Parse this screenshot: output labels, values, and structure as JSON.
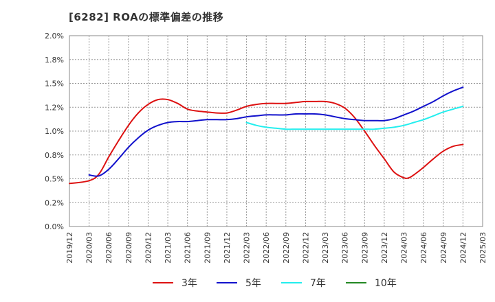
{
  "chart_data": {
    "type": "line",
    "title": "[6282]  ROAの標準偏差の推移",
    "xlabel": "",
    "ylabel": "",
    "ylim": [
      0,
      2.0
    ],
    "yticks": [
      0,
      0.25,
      0.5,
      0.75,
      1.0,
      1.25,
      1.5,
      1.75,
      2.0
    ],
    "ytick_labels": [
      "0.0%",
      "0.2%",
      "0.5%",
      "0.8%",
      "1.0%",
      "1.2%",
      "1.5%",
      "1.8%",
      "2.0%"
    ],
    "x_categories": [
      "2019/12",
      "2020/03",
      "2020/06",
      "2020/09",
      "2020/12",
      "2021/03",
      "2021/06",
      "2021/09",
      "2021/12",
      "2022/03",
      "2022/06",
      "2022/09",
      "2022/12",
      "2023/03",
      "2023/06",
      "2023/09",
      "2023/12",
      "2024/03",
      "2024/06",
      "2024/09",
      "2024/12",
      "2025/03"
    ],
    "grid": true,
    "legend_position": "bottom",
    "series": [
      {
        "name": "3年",
        "color": "#dd1111",
        "points": [
          [
            0,
            0.45
          ],
          [
            1,
            0.48
          ],
          [
            1.5,
            0.55
          ],
          [
            2,
            0.73
          ],
          [
            2.5,
            0.9
          ],
          [
            3,
            1.06
          ],
          [
            3.5,
            1.19
          ],
          [
            4,
            1.28
          ],
          [
            4.5,
            1.33
          ],
          [
            5,
            1.33
          ],
          [
            5.5,
            1.29
          ],
          [
            6,
            1.23
          ],
          [
            6.5,
            1.21
          ],
          [
            7,
            1.2
          ],
          [
            7.5,
            1.19
          ],
          [
            8,
            1.19
          ],
          [
            8.5,
            1.22
          ],
          [
            9,
            1.26
          ],
          [
            9.5,
            1.28
          ],
          [
            10,
            1.29
          ],
          [
            10.5,
            1.29
          ],
          [
            11,
            1.29
          ],
          [
            11.5,
            1.3
          ],
          [
            12,
            1.31
          ],
          [
            12.5,
            1.31
          ],
          [
            13,
            1.31
          ],
          [
            13.5,
            1.29
          ],
          [
            14,
            1.24
          ],
          [
            14.5,
            1.14
          ],
          [
            15,
            1.0
          ],
          [
            15.5,
            0.85
          ],
          [
            16,
            0.71
          ],
          [
            16.5,
            0.57
          ],
          [
            17,
            0.51
          ],
          [
            17.25,
            0.51
          ],
          [
            17.5,
            0.54
          ],
          [
            18,
            0.62
          ],
          [
            18.5,
            0.71
          ],
          [
            19,
            0.79
          ],
          [
            19.5,
            0.84
          ],
          [
            20,
            0.86
          ]
        ]
      },
      {
        "name": "5年",
        "color": "#1111cc",
        "points": [
          [
            1,
            0.54
          ],
          [
            1.5,
            0.53
          ],
          [
            2,
            0.6
          ],
          [
            2.5,
            0.71
          ],
          [
            3,
            0.83
          ],
          [
            3.5,
            0.93
          ],
          [
            4,
            1.01
          ],
          [
            4.5,
            1.06
          ],
          [
            5,
            1.09
          ],
          [
            5.5,
            1.1
          ],
          [
            6,
            1.1
          ],
          [
            6.5,
            1.11
          ],
          [
            7,
            1.12
          ],
          [
            7.5,
            1.12
          ],
          [
            8,
            1.12
          ],
          [
            8.5,
            1.13
          ],
          [
            9,
            1.15
          ],
          [
            9.5,
            1.16
          ],
          [
            10,
            1.17
          ],
          [
            10.5,
            1.17
          ],
          [
            11,
            1.17
          ],
          [
            11.5,
            1.18
          ],
          [
            12,
            1.18
          ],
          [
            12.5,
            1.18
          ],
          [
            13,
            1.17
          ],
          [
            13.5,
            1.15
          ],
          [
            14,
            1.13
          ],
          [
            14.5,
            1.12
          ],
          [
            15,
            1.11
          ],
          [
            15.5,
            1.11
          ],
          [
            16,
            1.11
          ],
          [
            16.5,
            1.13
          ],
          [
            17,
            1.17
          ],
          [
            17.5,
            1.21
          ],
          [
            18,
            1.26
          ],
          [
            18.5,
            1.31
          ],
          [
            19,
            1.37
          ],
          [
            19.5,
            1.42
          ],
          [
            20,
            1.46
          ]
        ]
      },
      {
        "name": "7年",
        "color": "#22eeee",
        "points": [
          [
            9,
            1.09
          ],
          [
            9.5,
            1.06
          ],
          [
            10,
            1.04
          ],
          [
            10.5,
            1.03
          ],
          [
            11,
            1.02
          ],
          [
            11.5,
            1.02
          ],
          [
            12,
            1.02
          ],
          [
            12.5,
            1.02
          ],
          [
            13,
            1.02
          ],
          [
            13.5,
            1.02
          ],
          [
            14,
            1.02
          ],
          [
            14.5,
            1.02
          ],
          [
            15,
            1.02
          ],
          [
            15.5,
            1.02
          ],
          [
            16,
            1.03
          ],
          [
            16.5,
            1.04
          ],
          [
            17,
            1.06
          ],
          [
            17.5,
            1.09
          ],
          [
            18,
            1.12
          ],
          [
            18.5,
            1.16
          ],
          [
            19,
            1.2
          ],
          [
            19.5,
            1.23
          ],
          [
            20,
            1.26
          ]
        ]
      },
      {
        "name": "10年",
        "color": "#228822",
        "points": []
      }
    ]
  }
}
